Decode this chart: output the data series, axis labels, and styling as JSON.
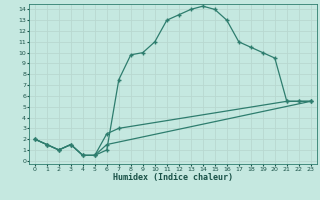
{
  "xlabel": "Humidex (Indice chaleur)",
  "bg_color": "#c5e8e0",
  "grid_color": "#b0d8ce",
  "line_color": "#2e7d6e",
  "xlim": [
    -0.5,
    23.5
  ],
  "ylim": [
    -0.3,
    14.5
  ],
  "xticks": [
    0,
    1,
    2,
    3,
    4,
    5,
    6,
    7,
    8,
    9,
    10,
    11,
    12,
    13,
    14,
    15,
    16,
    17,
    18,
    19,
    20,
    21,
    22,
    23
  ],
  "yticks": [
    0,
    1,
    2,
    3,
    4,
    5,
    6,
    7,
    8,
    9,
    10,
    11,
    12,
    13,
    14
  ],
  "curve_x": [
    0,
    1,
    2,
    3,
    4,
    5,
    6,
    7,
    8,
    9,
    10,
    11,
    12,
    13,
    14,
    15,
    16,
    17,
    18,
    19,
    20,
    21,
    22,
    23
  ],
  "curve_y": [
    2.0,
    1.5,
    1.0,
    1.5,
    0.5,
    0.5,
    1.0,
    7.5,
    9.8,
    10.0,
    11.0,
    13.0,
    13.5,
    14.0,
    14.3,
    14.0,
    13.0,
    11.0,
    10.5,
    10.0,
    9.5,
    5.5,
    5.5,
    5.5
  ],
  "line_a_x": [
    0,
    1,
    2,
    3,
    4,
    5,
    6,
    7,
    21,
    22,
    23
  ],
  "line_a_y": [
    2.0,
    1.5,
    1.0,
    1.5,
    0.5,
    0.5,
    2.5,
    3.0,
    5.5,
    5.5,
    5.5
  ],
  "line_b_x": [
    0,
    1,
    2,
    3,
    4,
    5,
    6,
    23
  ],
  "line_b_y": [
    2.0,
    1.5,
    1.0,
    1.5,
    0.5,
    0.5,
    1.5,
    5.5
  ]
}
